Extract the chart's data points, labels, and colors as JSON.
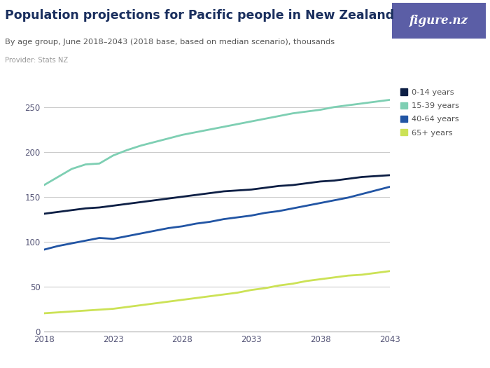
{
  "title": "Population projections for Pacific people in New Zealand",
  "subtitle": "By age group, June 2018–2043 (2018 base, based on median scenario), thousands",
  "provider": "Provider: Stats NZ",
  "years": [
    2018,
    2019,
    2020,
    2021,
    2022,
    2023,
    2024,
    2025,
    2026,
    2027,
    2028,
    2029,
    2030,
    2031,
    2032,
    2033,
    2034,
    2035,
    2036,
    2037,
    2038,
    2039,
    2040,
    2041,
    2042,
    2043
  ],
  "series": {
    "0-14 years": {
      "color": "#0d1f45",
      "values": [
        131,
        133,
        135,
        137,
        138,
        140,
        142,
        144,
        146,
        148,
        150,
        152,
        154,
        156,
        157,
        158,
        160,
        162,
        163,
        165,
        167,
        168,
        170,
        172,
        173,
        174
      ]
    },
    "15-39 years": {
      "color": "#7ecfb3",
      "values": [
        163,
        172,
        181,
        186,
        187,
        196,
        202,
        207,
        211,
        215,
        219,
        222,
        225,
        228,
        231,
        234,
        237,
        240,
        243,
        245,
        247,
        250,
        252,
        254,
        256,
        258
      ]
    },
    "40-64 years": {
      "color": "#2255a4",
      "values": [
        91,
        95,
        98,
        101,
        104,
        103,
        106,
        109,
        112,
        115,
        117,
        120,
        122,
        125,
        127,
        129,
        132,
        134,
        137,
        140,
        143,
        146,
        149,
        153,
        157,
        161
      ]
    },
    "65+ years": {
      "color": "#cce256",
      "values": [
        20,
        21,
        22,
        23,
        24,
        25,
        27,
        29,
        31,
        33,
        35,
        37,
        39,
        41,
        43,
        46,
        48,
        51,
        53,
        56,
        58,
        60,
        62,
        63,
        65,
        67
      ]
    }
  },
  "xlim": [
    2018,
    2043
  ],
  "ylim": [
    0,
    275
  ],
  "yticks": [
    0,
    50,
    100,
    150,
    200,
    250
  ],
  "xticks": [
    2018,
    2023,
    2028,
    2033,
    2038,
    2043
  ],
  "background_color": "#ffffff",
  "plot_bg_color": "#ffffff",
  "grid_color": "#cccccc",
  "title_color": "#1a2f5e",
  "subtitle_color": "#555555",
  "provider_color": "#999999",
  "tick_color": "#555577",
  "figsize": [
    7.0,
    5.25
  ],
  "dpi": 100,
  "logo_bg_color": "#5b5ea6",
  "logo_text": "figure.nz"
}
